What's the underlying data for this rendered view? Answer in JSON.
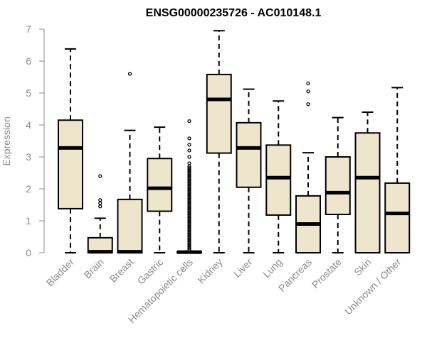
{
  "chart_data": {
    "type": "box",
    "title": "ENSG00000235726 - AC010148.1",
    "xlabel": "",
    "ylabel": "Expression",
    "ylim": [
      0,
      7
    ],
    "yticks": [
      0,
      1,
      2,
      3,
      4,
      5,
      6,
      7
    ],
    "grid": false,
    "box_fill": "#ede6cc",
    "box_stroke": "#000000",
    "categories": [
      "Bladder",
      "Brain",
      "Breast",
      "Gastric",
      "Hematopoietic cells",
      "Kidney",
      "Liver",
      "Lung",
      "Pancreas",
      "Prostate",
      "Skin",
      "Unknown / Other"
    ],
    "boxes": [
      {
        "category": "Bladder",
        "whisker_low": 0,
        "q1": 1.38,
        "median": 3.28,
        "q3": 4.15,
        "whisker_high": 6.38,
        "outliers": []
      },
      {
        "category": "Brain",
        "whisker_low": 0,
        "q1": 0,
        "median": 0.03,
        "q3": 0.47,
        "whisker_high": 1.08,
        "outliers": [
          1.45,
          1.55,
          1.65,
          2.4
        ]
      },
      {
        "category": "Breast",
        "whisker_low": 0,
        "q1": 0,
        "median": 0.03,
        "q3": 1.67,
        "whisker_high": 3.83,
        "outliers": [
          5.6
        ]
      },
      {
        "category": "Gastric",
        "whisker_low": 0,
        "q1": 1.3,
        "median": 2.02,
        "q3": 2.95,
        "whisker_high": 3.93,
        "outliers": []
      },
      {
        "category": "Hematopoietic cells",
        "whisker_low": 0,
        "q1": 0,
        "median": 0.02,
        "q3": 0.03,
        "whisker_high": 0.05,
        "outliers": [
          0.1,
          0.15,
          0.2,
          0.25,
          0.3,
          0.35,
          0.4,
          0.45,
          0.5,
          0.55,
          0.6,
          0.65,
          0.7,
          0.75,
          0.8,
          0.85,
          0.9,
          0.95,
          1.0,
          1.05,
          1.1,
          1.15,
          1.2,
          1.25,
          1.3,
          1.35,
          1.4,
          1.45,
          1.5,
          1.55,
          1.6,
          1.65,
          1.7,
          1.75,
          1.8,
          1.85,
          1.9,
          1.95,
          2.0,
          2.05,
          2.1,
          2.15,
          2.2,
          2.25,
          2.3,
          2.35,
          2.4,
          2.45,
          2.5,
          2.55,
          2.6,
          2.65,
          2.7,
          2.8,
          3.0,
          3.2,
          3.38,
          3.58,
          4.12
        ]
      },
      {
        "category": "Kidney",
        "whisker_low": 0,
        "q1": 3.12,
        "median": 4.8,
        "q3": 5.58,
        "whisker_high": 6.95,
        "outliers": []
      },
      {
        "category": "Liver",
        "whisker_low": 0,
        "q1": 2.05,
        "median": 3.28,
        "q3": 4.07,
        "whisker_high": 5.12,
        "outliers": []
      },
      {
        "category": "Lung",
        "whisker_low": 0,
        "q1": 1.18,
        "median": 2.35,
        "q3": 3.37,
        "whisker_high": 4.75,
        "outliers": []
      },
      {
        "category": "Pancreas",
        "whisker_low": 0,
        "q1": 0,
        "median": 0.9,
        "q3": 1.78,
        "whisker_high": 3.13,
        "outliers": [
          4.65,
          5.05,
          5.3
        ]
      },
      {
        "category": "Prostate",
        "whisker_low": 0,
        "q1": 1.2,
        "median": 1.88,
        "q3": 3.0,
        "whisker_high": 4.23,
        "outliers": []
      },
      {
        "category": "Skin",
        "whisker_low": 0,
        "q1": 0,
        "median": 2.35,
        "q3": 3.75,
        "whisker_high": 4.4,
        "outliers": []
      },
      {
        "category": "Unknown / Other",
        "whisker_low": 0,
        "q1": 0,
        "median": 1.23,
        "q3": 2.18,
        "whisker_high": 5.17,
        "outliers": []
      }
    ]
  }
}
